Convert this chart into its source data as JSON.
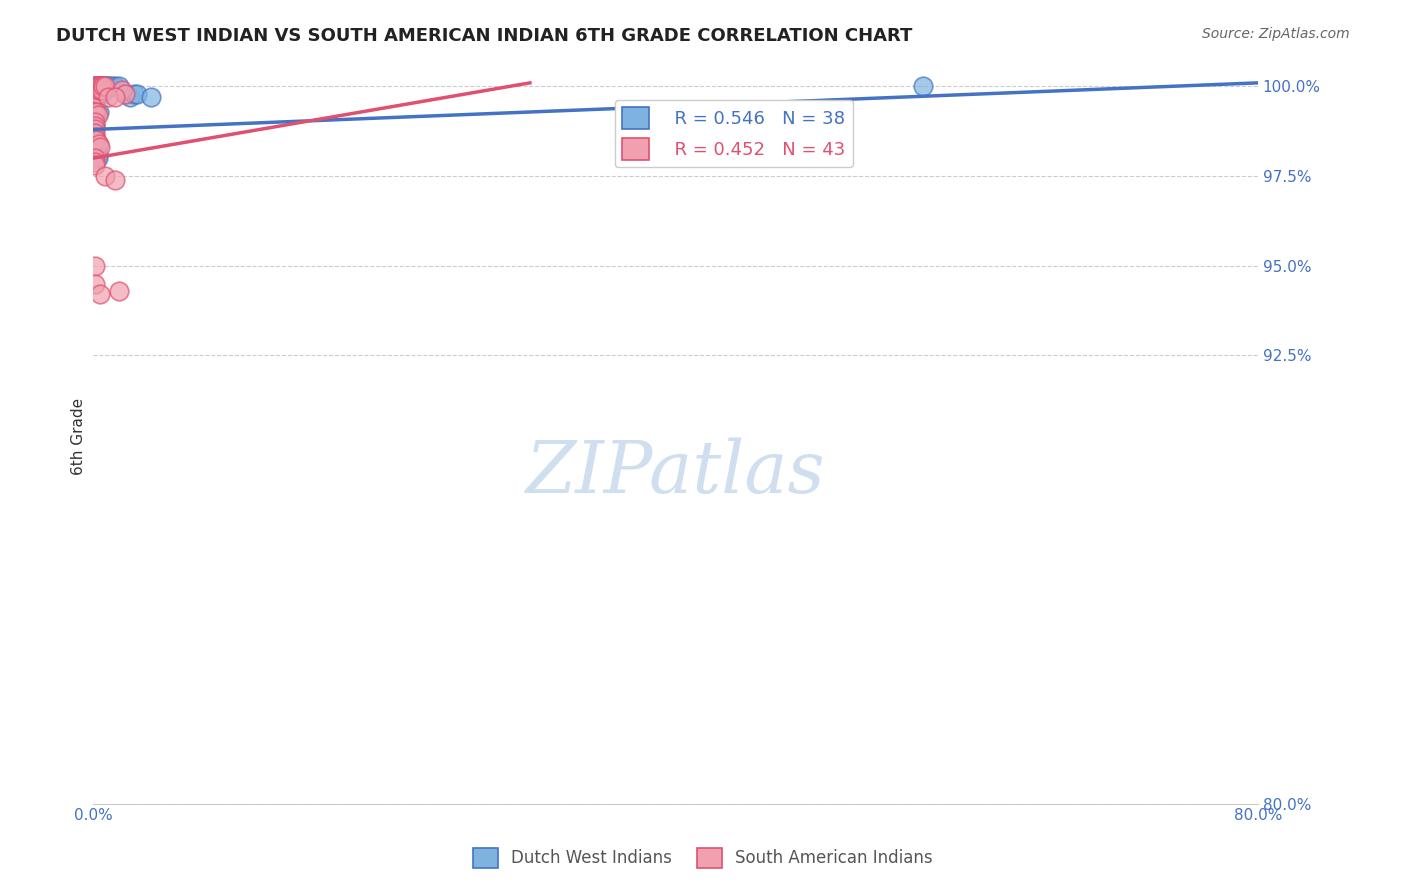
{
  "title": "DUTCH WEST INDIAN VS SOUTH AMERICAN INDIAN 6TH GRADE CORRELATION CHART",
  "source": "Source: ZipAtlas.com",
  "ylabel": "6th Grade",
  "ylabel_ticks": [
    "80.0%",
    "92.5%",
    "95.0%",
    "97.5%",
    "100.0%"
  ],
  "y_values": [
    0.8,
    0.925,
    0.95,
    0.975,
    1.0
  ],
  "x_min": 0.0,
  "x_max": 0.8,
  "y_min": 0.8,
  "y_max": 1.005,
  "legend_R_blue": "R = 0.546",
  "legend_N_blue": "N = 38",
  "legend_R_pink": "R = 0.452",
  "legend_N_pink": "N = 43",
  "color_blue": "#7EB3E0",
  "color_pink": "#F0A0B0",
  "color_blue_line": "#4472C4",
  "color_pink_line": "#E05070",
  "color_text_blue": "#4472C4",
  "color_text_pink": "#E05070",
  "color_axis_labels": "#4472C4",
  "watermark_color": "#D0DFF0",
  "background_color": "#FFFFFF",
  "blue_points": [
    [
      0.001,
      0.997
    ],
    [
      0.001,
      0.998
    ],
    [
      0.001,
      0.999
    ],
    [
      0.001,
      1.0
    ],
    [
      0.002,
      0.998
    ],
    [
      0.002,
      0.999
    ],
    [
      0.002,
      1.0
    ],
    [
      0.003,
      0.999
    ],
    [
      0.003,
      1.0
    ],
    [
      0.005,
      0.999
    ],
    [
      0.005,
      1.0
    ],
    [
      0.006,
      0.998
    ],
    [
      0.006,
      0.999
    ],
    [
      0.006,
      1.0
    ],
    [
      0.007,
      0.999
    ],
    [
      0.007,
      1.0
    ],
    [
      0.008,
      1.0
    ],
    [
      0.008,
      0.999
    ],
    [
      0.009,
      1.0
    ],
    [
      0.01,
      1.0
    ],
    [
      0.011,
      1.0
    ],
    [
      0.013,
      1.0
    ],
    [
      0.015,
      1.0
    ],
    [
      0.018,
      1.0
    ],
    [
      0.022,
      0.998
    ],
    [
      0.025,
      0.997
    ],
    [
      0.028,
      0.998
    ],
    [
      0.03,
      0.998
    ],
    [
      0.04,
      0.997
    ],
    [
      0.002,
      0.994
    ],
    [
      0.004,
      0.993
    ],
    [
      0.001,
      0.989
    ],
    [
      0.001,
      0.986
    ],
    [
      0.001,
      0.985
    ],
    [
      0.003,
      0.984
    ],
    [
      0.57,
      1.0
    ],
    [
      0.003,
      0.981
    ],
    [
      0.003,
      0.98
    ]
  ],
  "pink_points": [
    [
      0.001,
      1.0
    ],
    [
      0.001,
      0.999
    ],
    [
      0.001,
      0.998
    ],
    [
      0.001,
      0.997
    ],
    [
      0.002,
      1.0
    ],
    [
      0.002,
      0.999
    ],
    [
      0.002,
      0.998
    ],
    [
      0.003,
      1.0
    ],
    [
      0.003,
      0.999
    ],
    [
      0.003,
      0.998
    ],
    [
      0.004,
      1.0
    ],
    [
      0.004,
      0.999
    ],
    [
      0.005,
      1.0
    ],
    [
      0.005,
      0.999
    ],
    [
      0.006,
      1.0
    ],
    [
      0.006,
      0.999
    ],
    [
      0.007,
      1.0
    ],
    [
      0.008,
      1.0
    ],
    [
      0.02,
      0.999
    ],
    [
      0.022,
      0.998
    ],
    [
      0.01,
      0.997
    ],
    [
      0.015,
      0.997
    ],
    [
      0.001,
      0.993
    ],
    [
      0.002,
      0.993
    ],
    [
      0.003,
      0.992
    ],
    [
      0.001,
      0.99
    ],
    [
      0.001,
      0.989
    ],
    [
      0.001,
      0.988
    ],
    [
      0.001,
      0.987
    ],
    [
      0.001,
      0.986
    ],
    [
      0.001,
      0.985
    ],
    [
      0.002,
      0.985
    ],
    [
      0.004,
      0.984
    ],
    [
      0.005,
      0.983
    ],
    [
      0.001,
      0.98
    ],
    [
      0.001,
      0.979
    ],
    [
      0.001,
      0.978
    ],
    [
      0.008,
      0.975
    ],
    [
      0.015,
      0.974
    ],
    [
      0.001,
      0.95
    ],
    [
      0.001,
      0.945
    ],
    [
      0.018,
      0.943
    ],
    [
      0.005,
      0.942
    ]
  ],
  "blue_trend_x": [
    0.0,
    0.8
  ],
  "blue_trend_y": [
    0.988,
    1.001
  ],
  "pink_trend_x": [
    0.0,
    0.3
  ],
  "pink_trend_y": [
    0.98,
    1.001
  ]
}
